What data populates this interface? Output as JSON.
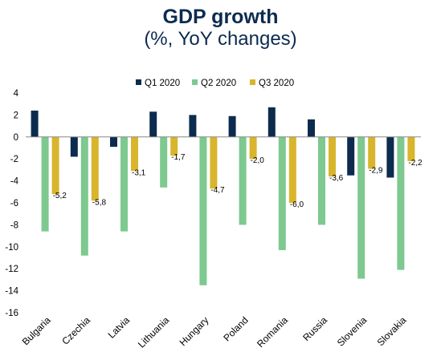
{
  "chart_data": {
    "type": "bar",
    "title": "GDP growth",
    "subtitle": "(%, YoY changes)",
    "categories": [
      "Bulgaria",
      "Czechia",
      "Latvia",
      "Lithuania",
      "Hungary",
      "Poland",
      "Romania",
      "Russia",
      "Slovenia",
      "Slovakia"
    ],
    "series": [
      {
        "name": "Q1 2020",
        "color": "#0d2b4e",
        "values": [
          2.4,
          -1.8,
          -0.9,
          2.3,
          2.0,
          1.9,
          2.7,
          1.6,
          -3.5,
          -3.7
        ],
        "labels": []
      },
      {
        "name": "Q2 2020",
        "color": "#7dc98f",
        "values": [
          -8.6,
          -10.8,
          -8.6,
          -4.6,
          -13.5,
          -8.0,
          -10.3,
          -8.0,
          -12.9,
          -12.1
        ],
        "labels": []
      },
      {
        "name": "Q3 2020",
        "color": "#d8b52c",
        "values": [
          -5.2,
          -5.8,
          -3.1,
          -1.7,
          -4.7,
          -2.0,
          -6.0,
          -3.6,
          -2.9,
          -2.2
        ],
        "labels": [
          "-5,2",
          "-5,8",
          "-3,1",
          "-1,7",
          "-4,7",
          "-2,0",
          "-6,0",
          "-3,6",
          "-2,9",
          "-2,2"
        ]
      }
    ],
    "ylim": [
      -16,
      4
    ],
    "yticks": [
      4,
      2,
      0,
      -2,
      -4,
      -6,
      -8,
      -10,
      -12,
      -14,
      -16
    ],
    "legend": "top",
    "grid": false,
    "xlabel": "",
    "ylabel": ""
  }
}
